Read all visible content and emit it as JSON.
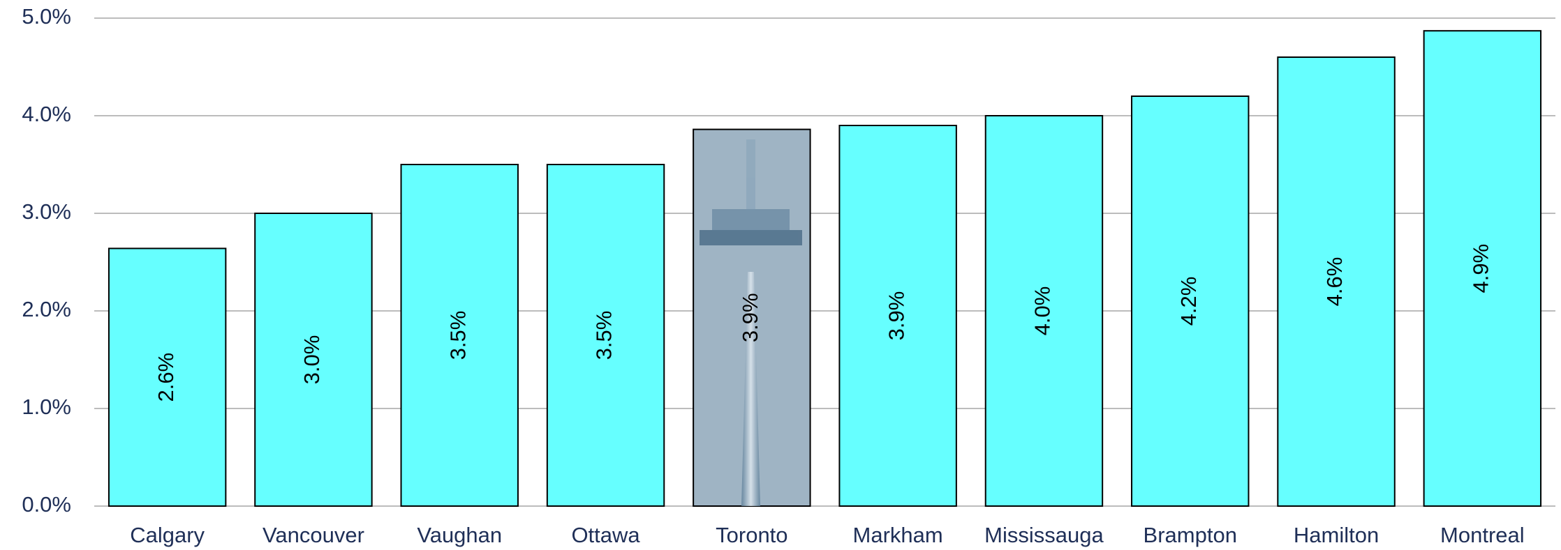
{
  "chart_data": {
    "type": "bar",
    "categories": [
      "Calgary",
      "Vancouver",
      "Vaughan",
      "Ottawa",
      "Toronto",
      "Markham",
      "Mississauga",
      "Brampton",
      "Hamilton",
      "Montreal"
    ],
    "values": [
      2.64,
      3.0,
      3.5,
      3.5,
      3.86,
      3.9,
      4.0,
      4.2,
      4.6,
      4.87
    ],
    "value_labels": [
      "2.6%",
      "3.0%",
      "3.5%",
      "3.5%",
      "3.9%",
      "3.9%",
      "4.0%",
      "4.2%",
      "4.6%",
      "4.9%"
    ],
    "colors": [
      "#66ffff",
      "#66ffff",
      "#66ffff",
      "#66ffff",
      "#9fb4c4",
      "#66ffff",
      "#66ffff",
      "#66ffff",
      "#66ffff",
      "#66ffff"
    ],
    "ylim": [
      0,
      5
    ],
    "yticks": [
      {
        "value": 0,
        "label": "0.0%"
      },
      {
        "value": 1,
        "label": "1.0%"
      },
      {
        "value": 2,
        "label": "2.0%"
      },
      {
        "value": 3,
        "label": "3.0%"
      },
      {
        "value": 4,
        "label": "4.0%"
      },
      {
        "value": 5,
        "label": "5.0%"
      }
    ],
    "grid": true
  }
}
